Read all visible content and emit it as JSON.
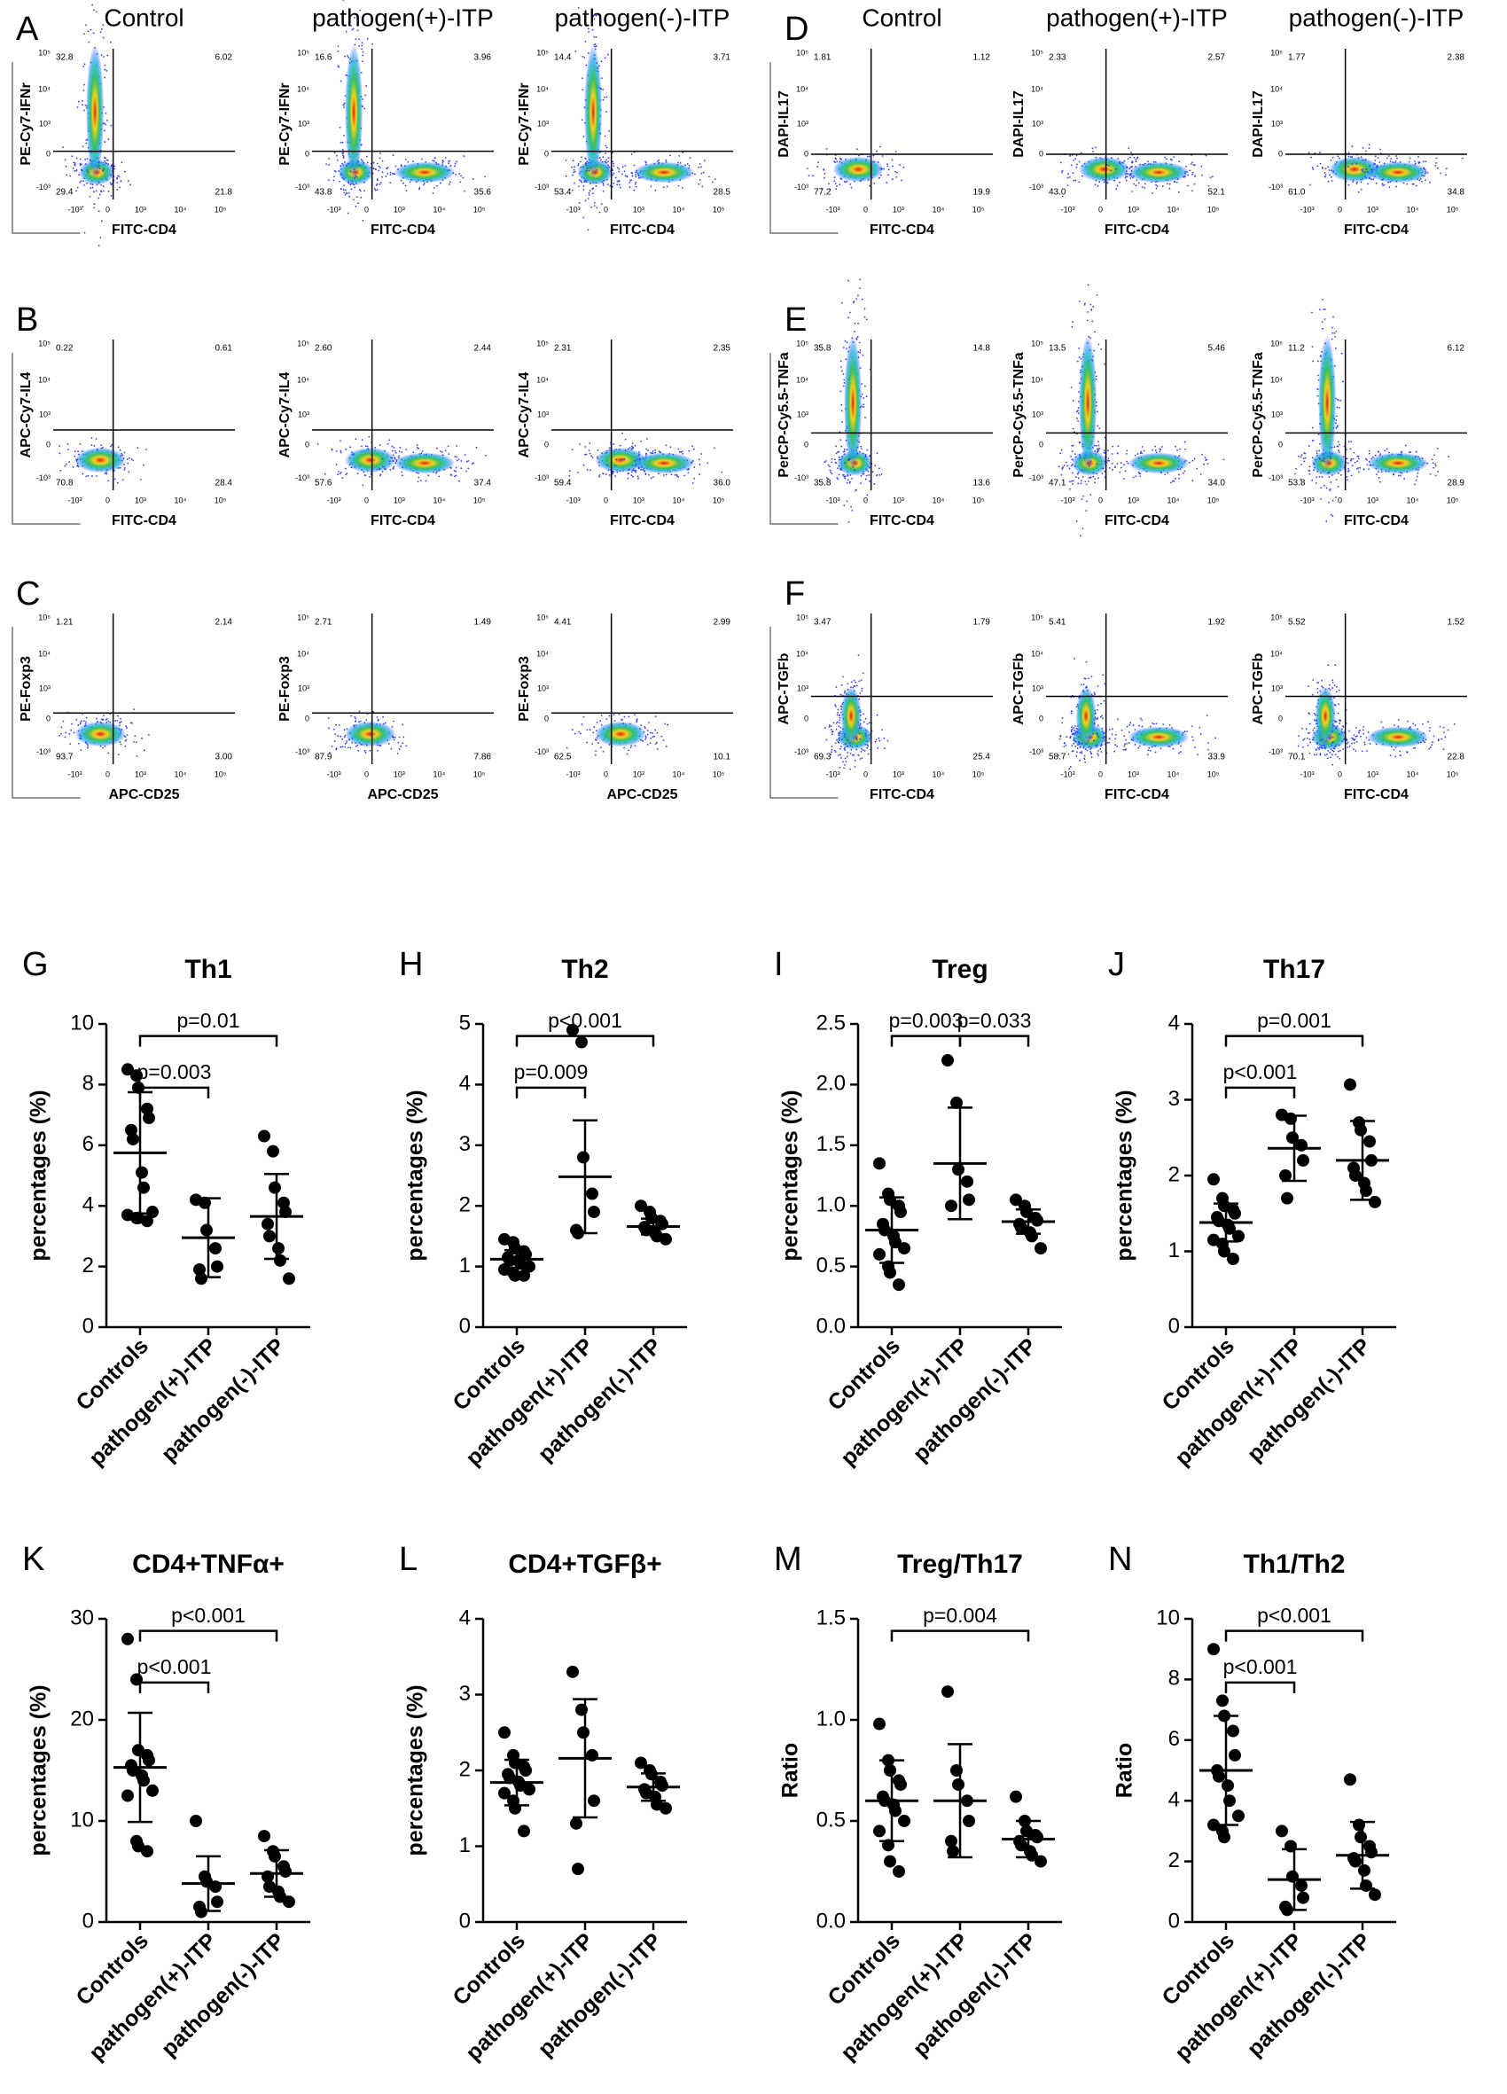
{
  "flow_columns": [
    "Control",
    "pathogen(+)-ITP",
    "pathogen(-)-ITP"
  ],
  "flow_axis_ticks": {
    "x": [
      "-10³",
      "0",
      "10³",
      "10⁴",
      "10⁵"
    ],
    "y": [
      "10⁵",
      "10⁴",
      "10³",
      "0",
      "-10³"
    ]
  },
  "flow_panels": [
    {
      "label": "A",
      "y_label": "PE-Cy7-IFNr",
      "x_label": "FITC-CD4",
      "quadrants": [
        [
          "32.8",
          "6.02",
          "29.4",
          "21.8"
        ],
        [
          "16.6",
          "3.96",
          "43.8",
          "35.6"
        ],
        [
          "14.4",
          "3.71",
          "53.4",
          "28.5"
        ]
      ]
    },
    {
      "label": "B",
      "y_label": "APC-Cy7-IL4",
      "x_label": "FITC-CD4",
      "quadrants": [
        [
          "0.22",
          "0.61",
          "70.8",
          "28.4"
        ],
        [
          "2.60",
          "2.44",
          "57.6",
          "37.4"
        ],
        [
          "2.31",
          "2.35",
          "59.4",
          "36.0"
        ]
      ]
    },
    {
      "label": "C",
      "y_label": "PE-Foxp3",
      "x_label": "APC-CD25",
      "quadrants": [
        [
          "1.21",
          "2.14",
          "93.7",
          "3.00"
        ],
        [
          "2.71",
          "1.49",
          "87.9",
          "7.86"
        ],
        [
          "4.41",
          "2.99",
          "62.5",
          "10.1"
        ]
      ]
    },
    {
      "label": "D",
      "y_label": "DAPI-IL17",
      "x_label": "FITC-CD4",
      "quadrants": [
        [
          "1.81",
          "1.12",
          "77.2",
          "19.9"
        ],
        [
          "2.33",
          "2.57",
          "43.0",
          "52.1"
        ],
        [
          "1.77",
          "2.38",
          "61.0",
          "34.8"
        ]
      ]
    },
    {
      "label": "E",
      "y_label": "PerCP-Cy5.5-TNFa",
      "x_label": "FITC-CD4",
      "quadrants": [
        [
          "35.8",
          "14.8",
          "35.8",
          "13.6"
        ],
        [
          "13.5",
          "5.46",
          "47.1",
          "34.0"
        ],
        [
          "11.2",
          "6.12",
          "53.8",
          "28.9"
        ]
      ]
    },
    {
      "label": "F",
      "y_label": "APC-TGFb",
      "x_label": "FITC-CD4",
      "quadrants": [
        [
          "3.47",
          "1.79",
          "69.3",
          "25.4"
        ],
        [
          "5.41",
          "1.92",
          "58.7",
          "33.9"
        ],
        [
          "5.52",
          "1.52",
          "70.1",
          "22.8"
        ]
      ]
    }
  ],
  "chart_data": [
    {
      "type": "dot",
      "letter": "G",
      "title": "Th1",
      "y_label": "percentages (%)",
      "categories": [
        "Controls",
        "pathogen(+)-ITP",
        "pathogen(-)-ITP"
      ],
      "ylim": [
        0,
        10
      ],
      "yticks": [
        0,
        2,
        4,
        6,
        8,
        10
      ],
      "groups": [
        {
          "values": [
            8.5,
            8.3,
            7.9,
            7.2,
            6.9,
            6.5,
            6.2,
            5.1,
            4.6,
            3.8,
            3.7,
            3.6,
            3.6,
            3.5
          ],
          "mean": 5.75,
          "sd": 2.0
        },
        {
          "values": [
            4.2,
            4.1,
            3.2,
            2.6,
            2.0,
            1.9,
            1.6
          ],
          "mean": 2.95,
          "sd": 1.3
        },
        {
          "values": [
            6.3,
            5.8,
            4.6,
            4.1,
            3.8,
            3.4,
            3.0,
            2.6,
            2.2,
            1.6
          ],
          "mean": 3.65,
          "sd": 1.4
        }
      ],
      "brackets": [
        {
          "between": [
            0,
            1
          ],
          "label": "p=0.003"
        },
        {
          "between": [
            0,
            2
          ],
          "label": "p=0.01"
        }
      ]
    },
    {
      "type": "dot",
      "letter": "H",
      "title": "Th2",
      "y_label": "percentages (%)",
      "categories": [
        "Controls",
        "pathogen(+)-ITP",
        "pathogen(-)-ITP"
      ],
      "ylim": [
        0,
        5
      ],
      "yticks": [
        0,
        1,
        2,
        3,
        4,
        5
      ],
      "groups": [
        {
          "values": [
            1.45,
            1.4,
            1.3,
            1.25,
            1.2,
            1.15,
            1.1,
            1.1,
            1.05,
            1.0,
            0.95,
            0.9,
            0.85,
            0.85
          ],
          "mean": 1.12,
          "sd": 0.15
        },
        {
          "values": [
            4.9,
            4.7,
            2.8,
            2.2,
            1.9,
            1.6,
            1.55
          ],
          "mean": 2.48,
          "sd": 0.93
        },
        {
          "values": [
            2.0,
            1.9,
            1.8,
            1.75,
            1.7,
            1.65,
            1.6,
            1.55,
            1.5,
            1.45
          ],
          "mean": 1.66,
          "sd": 0.13
        }
      ],
      "brackets": [
        {
          "between": [
            0,
            1
          ],
          "label": "p=0.009"
        },
        {
          "between": [
            0,
            2
          ],
          "label": "p<0.001"
        }
      ]
    },
    {
      "type": "dot",
      "letter": "I",
      "title": "Treg",
      "y_label": "percentages (%)",
      "categories": [
        "Controls",
        "pathogen(+)-ITP",
        "pathogen(-)-ITP"
      ],
      "ylim": [
        0,
        2.5
      ],
      "yticks": [
        {
          "value": 0,
          "label": "0.0"
        },
        0.5,
        {
          "value": 1,
          "label": "1.0"
        },
        1.5,
        {
          "value": 2,
          "label": "2.0"
        },
        2.5
      ],
      "groups": [
        {
          "values": [
            1.35,
            1.1,
            1.05,
            1.0,
            0.95,
            0.85,
            0.8,
            0.75,
            0.7,
            0.65,
            0.6,
            0.5,
            0.45,
            0.35
          ],
          "mean": 0.8,
          "sd": 0.27
        },
        {
          "values": [
            2.2,
            1.85,
            1.3,
            1.2,
            1.05,
            1.0
          ],
          "mean": 1.35,
          "sd": 0.46
        },
        {
          "values": [
            1.05,
            1.0,
            0.95,
            0.9,
            0.88,
            0.85,
            0.82,
            0.78,
            0.75,
            0.65
          ],
          "mean": 0.87,
          "sd": 0.1
        }
      ],
      "brackets": [
        {
          "between": [
            0,
            1
          ],
          "label": "p=0.003"
        },
        {
          "between": [
            1,
            2
          ],
          "label": "p=0.033"
        }
      ]
    },
    {
      "type": "dot",
      "letter": "J",
      "title": "Th17",
      "y_label": "percentages (%)",
      "categories": [
        "Controls",
        "pathogen(+)-ITP",
        "pathogen(-)-ITP"
      ],
      "ylim": [
        0,
        4
      ],
      "yticks": [
        0,
        1,
        2,
        3,
        4
      ],
      "groups": [
        {
          "values": [
            1.95,
            1.7,
            1.6,
            1.55,
            1.5,
            1.45,
            1.4,
            1.35,
            1.3,
            1.2,
            1.15,
            1.1,
            1.0,
            0.9
          ],
          "mean": 1.38,
          "sd": 0.25
        },
        {
          "values": [
            2.8,
            2.75,
            2.5,
            2.4,
            2.2,
            2.0,
            1.7
          ],
          "mean": 2.36,
          "sd": 0.43
        },
        {
          "values": [
            3.2,
            2.7,
            2.6,
            2.45,
            2.2,
            2.1,
            2.0,
            1.9,
            1.8,
            1.65
          ],
          "mean": 2.2,
          "sd": 0.52
        }
      ],
      "brackets": [
        {
          "between": [
            0,
            1
          ],
          "label": "p<0.001"
        },
        {
          "between": [
            0,
            2
          ],
          "label": "p=0.001"
        }
      ]
    },
    {
      "type": "dot",
      "letter": "K",
      "title": "CD4+TNFα+",
      "y_label": "percentages (%)",
      "categories": [
        "Controls",
        "pathogen(+)-ITP",
        "pathogen(-)-ITP"
      ],
      "ylim": [
        0,
        30
      ],
      "yticks": [
        0,
        10,
        20,
        30
      ],
      "groups": [
        {
          "values": [
            28,
            24,
            17,
            16.5,
            16,
            15.5,
            15,
            14.5,
            14,
            13,
            12.5,
            8,
            7.5,
            7
          ],
          "mean": 15.3,
          "sd": 5.4
        },
        {
          "values": [
            10,
            4.5,
            4,
            3.5,
            2,
            1.5,
            1
          ],
          "mean": 3.8,
          "sd": 2.7
        },
        {
          "values": [
            8.5,
            7,
            6.5,
            5.5,
            5,
            4.5,
            3.5,
            3,
            2.5,
            2
          ],
          "mean": 4.8,
          "sd": 2.3
        }
      ],
      "brackets": [
        {
          "between": [
            0,
            1
          ],
          "label": "p<0.001"
        },
        {
          "between": [
            0,
            2
          ],
          "label": "p<0.001"
        }
      ]
    },
    {
      "type": "dot",
      "letter": "L",
      "title": "CD4+TGFβ+",
      "y_label": "percentages (%)",
      "categories": [
        "Controls",
        "pathogen(+)-ITP",
        "pathogen(-)-ITP"
      ],
      "ylim": [
        0,
        4
      ],
      "yticks": [
        0,
        1,
        2,
        3,
        4
      ],
      "groups": [
        {
          "values": [
            2.5,
            2.2,
            2.1,
            2.05,
            2.0,
            1.95,
            1.9,
            1.85,
            1.8,
            1.75,
            1.7,
            1.6,
            1.5,
            1.2
          ],
          "mean": 1.84,
          "sd": 0.3
        },
        {
          "values": [
            3.3,
            2.8,
            2.5,
            2.2,
            1.6,
            1.3,
            0.7
          ],
          "mean": 2.16,
          "sd": 0.78
        },
        {
          "values": [
            2.1,
            2.0,
            1.95,
            1.85,
            1.8,
            1.75,
            1.7,
            1.65,
            1.55,
            1.5
          ],
          "mean": 1.78,
          "sd": 0.18
        }
      ],
      "brackets": []
    },
    {
      "type": "dot",
      "letter": "M",
      "title": "Treg/Th17",
      "y_label": "Ratio",
      "categories": [
        "Controls",
        "pathogen(+)-ITP",
        "pathogen(-)-ITP"
      ],
      "ylim": [
        0,
        1.5
      ],
      "yticks": [
        {
          "value": 0,
          "label": "0.0"
        },
        0.5,
        {
          "value": 1,
          "label": "1.0"
        },
        1.5
      ],
      "groups": [
        {
          "values": [
            0.98,
            0.8,
            0.75,
            0.7,
            0.68,
            0.62,
            0.6,
            0.58,
            0.55,
            0.5,
            0.45,
            0.38,
            0.3,
            0.25
          ],
          "mean": 0.6,
          "sd": 0.2
        },
        {
          "values": [
            1.14,
            0.75,
            0.68,
            0.6,
            0.5,
            0.4,
            0.35
          ],
          "mean": 0.6,
          "sd": 0.28
        },
        {
          "values": [
            0.62,
            0.5,
            0.45,
            0.43,
            0.42,
            0.4,
            0.38,
            0.35,
            0.33,
            0.3
          ],
          "mean": 0.41,
          "sd": 0.09
        }
      ],
      "brackets": [
        {
          "between": [
            0,
            2
          ],
          "label": "p=0.004"
        }
      ]
    },
    {
      "type": "dot",
      "letter": "N",
      "title": "Th1/Th2",
      "y_label": "Ratio",
      "categories": [
        "Controls",
        "pathogen(+)-ITP",
        "pathogen(-)-ITP"
      ],
      "ylim": [
        0,
        10
      ],
      "yticks": [
        0,
        2,
        4,
        6,
        8,
        10
      ],
      "groups": [
        {
          "values": [
            9.0,
            7.3,
            6.8,
            6.3,
            5.5,
            5.0,
            4.8,
            4.5,
            4.0,
            3.5,
            3.2,
            3.0,
            2.8
          ],
          "mean": 5.0,
          "sd": 1.8
        },
        {
          "values": [
            3.0,
            2.5,
            1.5,
            1.2,
            0.8,
            0.5,
            0.4
          ],
          "mean": 1.4,
          "sd": 1.0
        },
        {
          "values": [
            4.7,
            3.2,
            2.8,
            2.5,
            2.3,
            2.1,
            2.0,
            1.7,
            1.2,
            0.9
          ],
          "mean": 2.2,
          "sd": 1.1
        }
      ],
      "brackets": [
        {
          "between": [
            0,
            1
          ],
          "label": "p<0.001"
        },
        {
          "between": [
            0,
            2
          ],
          "label": "p<0.001"
        }
      ]
    }
  ]
}
